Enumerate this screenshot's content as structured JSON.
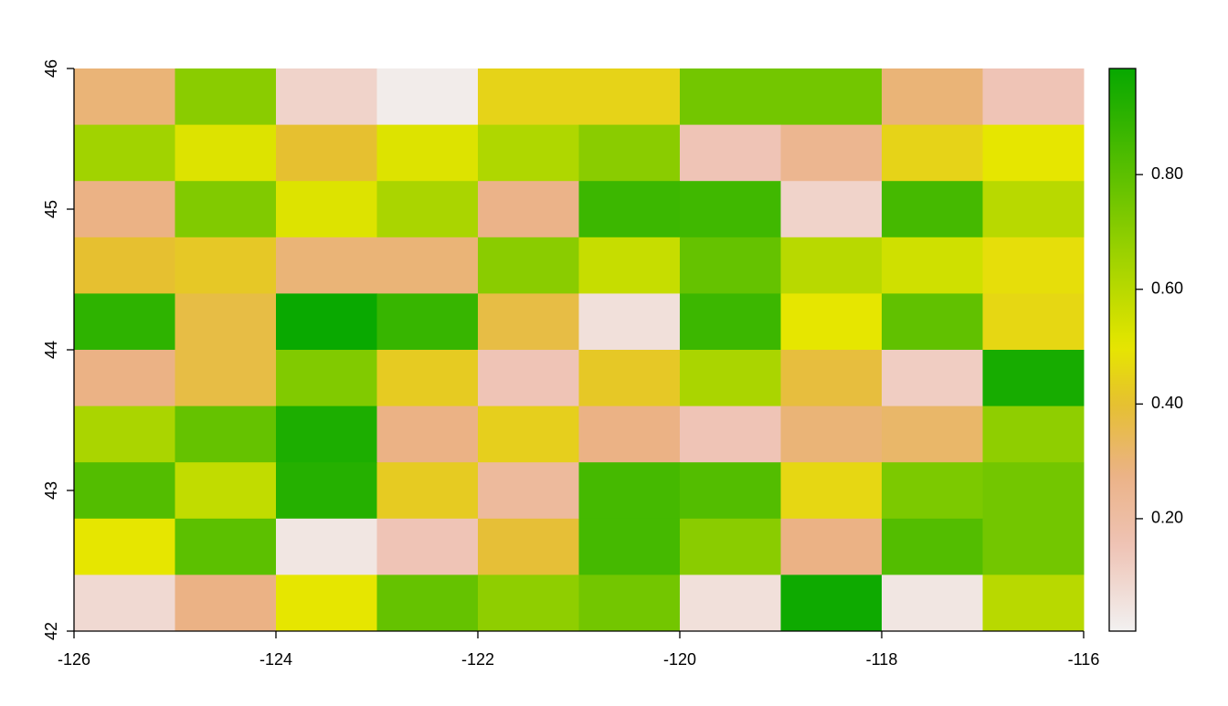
{
  "chart_data": {
    "type": "heatmap",
    "xlim": [
      -126,
      -116
    ],
    "xticks": [
      -126,
      -124,
      -122,
      -120,
      -118,
      -116
    ],
    "ylim": [
      42,
      46
    ],
    "yticks": [
      42,
      43,
      44,
      45,
      46
    ],
    "zlim": [
      0.004,
      0.985
    ],
    "zticks": [
      {
        "value": 0.2,
        "label": "0.20"
      },
      {
        "value": 0.4,
        "label": "0.40"
      },
      {
        "value": 0.6,
        "label": "0.60"
      },
      {
        "value": 0.8,
        "label": "0.80"
      }
    ],
    "colormap": [
      {
        "value": 0,
        "color": "#F2F2F2"
      },
      {
        "value": 0.15,
        "color": "#EFC4B6"
      },
      {
        "value": 0.28,
        "color": "#EBB285"
      },
      {
        "value": 0.4,
        "color": "#E6C030"
      },
      {
        "value": 0.5,
        "color": "#E6E600"
      },
      {
        "value": 1,
        "color": "#00A600"
      }
    ],
    "values": [
      [
        0.3,
        0.7,
        0.1,
        0.02,
        0.45,
        0.45,
        0.75,
        0.75,
        0.3,
        0.15
      ],
      [
        0.65,
        0.52,
        0.4,
        0.52,
        0.62,
        0.7,
        0.15,
        0.25,
        0.45,
        0.5
      ],
      [
        0.28,
        0.72,
        0.52,
        0.63,
        0.27,
        0.87,
        0.86,
        0.1,
        0.85,
        0.6
      ],
      [
        0.4,
        0.42,
        0.3,
        0.3,
        0.7,
        0.57,
        0.78,
        0.6,
        0.55,
        0.48
      ],
      [
        0.9,
        0.37,
        0.98,
        0.88,
        0.37,
        0.06,
        0.87,
        0.5,
        0.79,
        0.46
      ],
      [
        0.28,
        0.37,
        0.72,
        0.43,
        0.15,
        0.42,
        0.63,
        0.38,
        0.12,
        0.95
      ],
      [
        0.63,
        0.78,
        0.94,
        0.28,
        0.44,
        0.28,
        0.15,
        0.3,
        0.32,
        0.69
      ],
      [
        0.82,
        0.58,
        0.92,
        0.43,
        0.22,
        0.85,
        0.82,
        0.46,
        0.73,
        0.75
      ],
      [
        0.5,
        0.8,
        0.04,
        0.15,
        0.39,
        0.85,
        0.7,
        0.28,
        0.82,
        0.75
      ],
      [
        0.08,
        0.28,
        0.5,
        0.78,
        0.69,
        0.75,
        0.06,
        0.97,
        0.04,
        0.6
      ]
    ]
  }
}
